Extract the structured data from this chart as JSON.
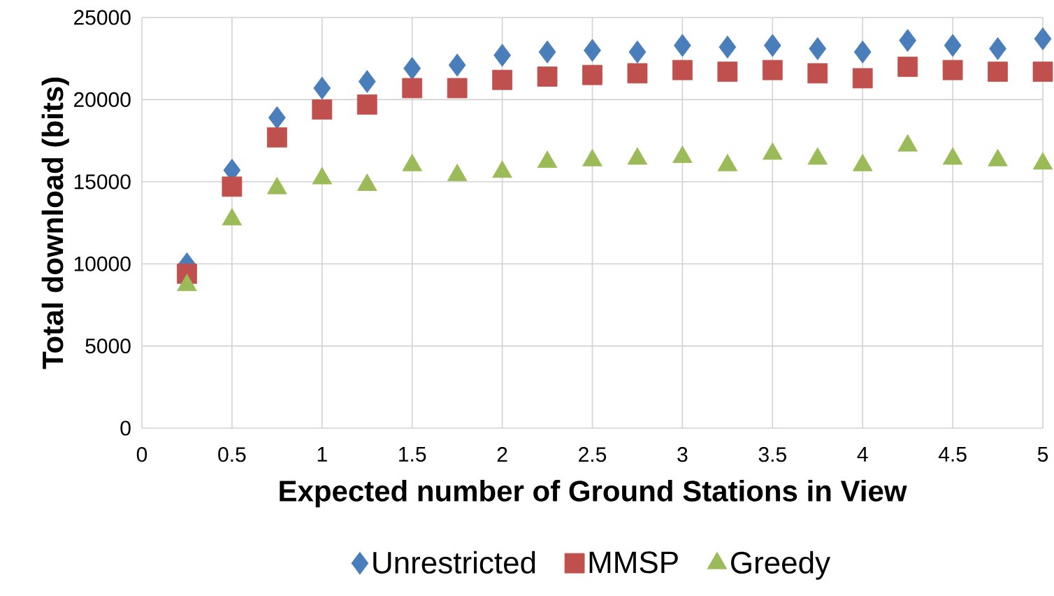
{
  "chart_data": {
    "type": "scatter",
    "xlabel": "Expected number of Ground Stations in View",
    "ylabel": "Total download (bits)",
    "x": [
      0.25,
      0.5,
      0.75,
      1,
      1.25,
      1.5,
      1.75,
      2,
      2.25,
      2.5,
      2.75,
      3,
      3.25,
      3.5,
      3.75,
      4,
      4.25,
      4.5,
      4.75,
      5
    ],
    "series": [
      {
        "name": "Unrestricted",
        "color": "#4a7ebb",
        "marker": "diamond",
        "values": [
          10000,
          15700,
          18900,
          20700,
          21100,
          21900,
          22100,
          22700,
          22900,
          23000,
          22900,
          23300,
          23200,
          23300,
          23100,
          22900,
          23600,
          23300,
          23100,
          23700
        ]
      },
      {
        "name": "MMSP",
        "color": "#c0504d",
        "marker": "square",
        "values": [
          9400,
          14700,
          17700,
          19400,
          19700,
          20700,
          20700,
          21200,
          21400,
          21500,
          21600,
          21800,
          21700,
          21800,
          21600,
          21300,
          22000,
          21800,
          21700,
          21700
        ]
      },
      {
        "name": "Greedy",
        "color": "#9bbb59",
        "marker": "triangle",
        "values": [
          8700,
          12700,
          14600,
          15200,
          14800,
          16000,
          15400,
          15600,
          16200,
          16300,
          16400,
          16500,
          16000,
          16700,
          16400,
          16000,
          17200,
          16400,
          16300,
          16100
        ]
      }
    ],
    "xlim": [
      0,
      5
    ],
    "xticks": [
      0,
      0.5,
      1,
      1.5,
      2,
      2.5,
      3,
      3.5,
      4,
      4.5,
      5
    ],
    "ylim": [
      0,
      25000
    ],
    "yticks": [
      0,
      5000,
      10000,
      15000,
      20000,
      25000
    ],
    "grid": true,
    "legend": "bottom"
  }
}
